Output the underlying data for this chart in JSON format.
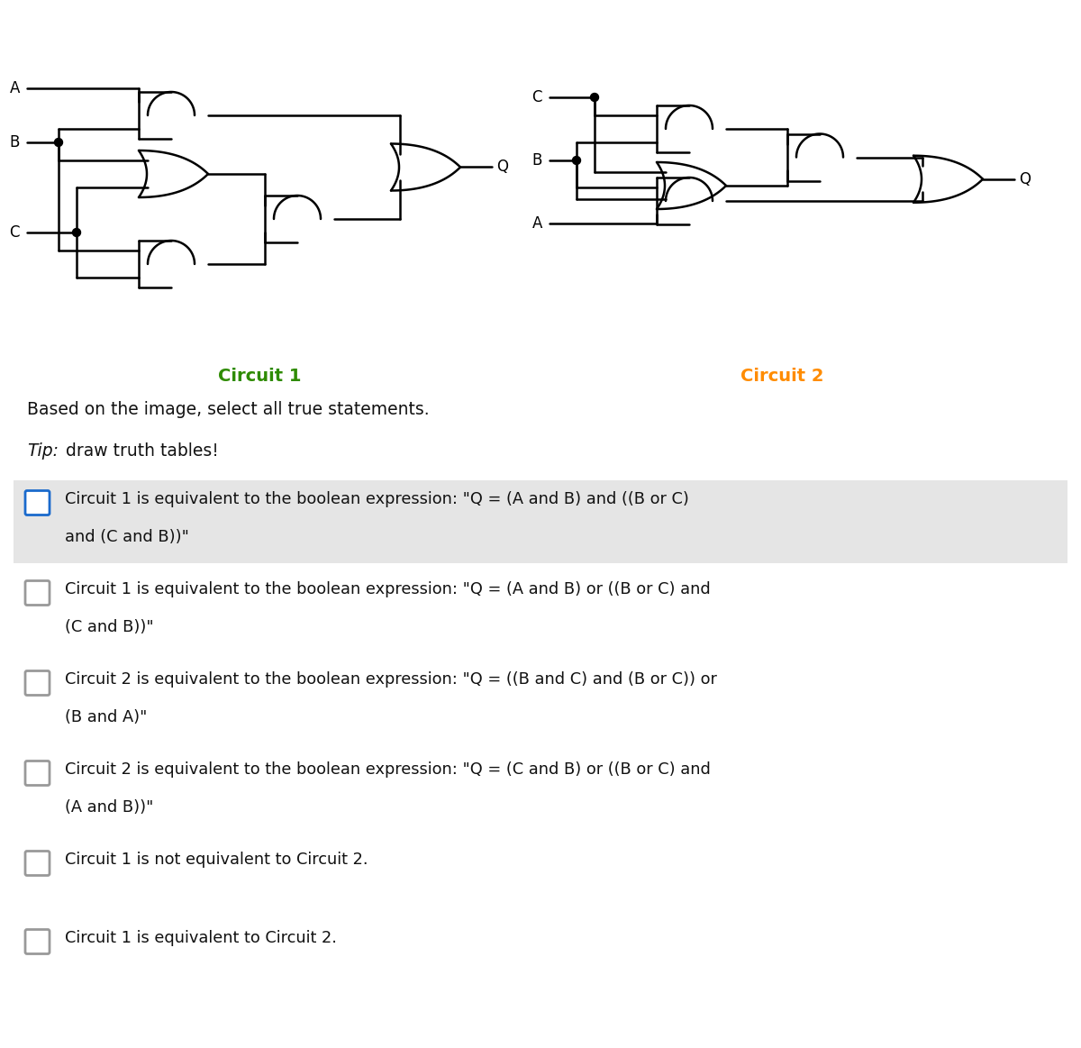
{
  "bg_color": "#ffffff",
  "circuit1_label": "Circuit 1",
  "circuit2_label": "Circuit 2",
  "circuit1_color": "#2e8b00",
  "circuit2_color": "#ff8c00",
  "question_text": "Based on the image, select all true statements.",
  "tip_italic_prefix": "Tip:",
  "tip_italic_suffix": " draw truth tables!",
  "options": [
    {
      "line1": "Circuit 1 is equivalent to the boolean expression: \"Q = (A and B) and ((B or C)",
      "line2": "and (C and B))\"",
      "highlighted": true,
      "checkbox_color": "#1a6acc"
    },
    {
      "line1": "Circuit 1 is equivalent to the boolean expression: \"Q = (A and B) or ((B or C) and",
      "line2": "(C and B))\"",
      "highlighted": false,
      "checkbox_color": "#999999"
    },
    {
      "line1": "Circuit 2 is equivalent to the boolean expression: \"Q = ((B and C) and (B or C)) or",
      "line2": "(B and A)\"",
      "highlighted": false,
      "checkbox_color": "#999999"
    },
    {
      "line1": "Circuit 2 is equivalent to the boolean expression: \"Q = (C and B) or ((B or C) and",
      "line2": "(A and B))\"",
      "highlighted": false,
      "checkbox_color": "#999999"
    },
    {
      "line1": "Circuit 1 is not equivalent to Circuit 2.",
      "line2": "",
      "highlighted": false,
      "checkbox_color": "#999999"
    },
    {
      "line1": "Circuit 1 is equivalent to Circuit 2.",
      "line2": "",
      "highlighted": false,
      "checkbox_color": "#999999"
    }
  ]
}
